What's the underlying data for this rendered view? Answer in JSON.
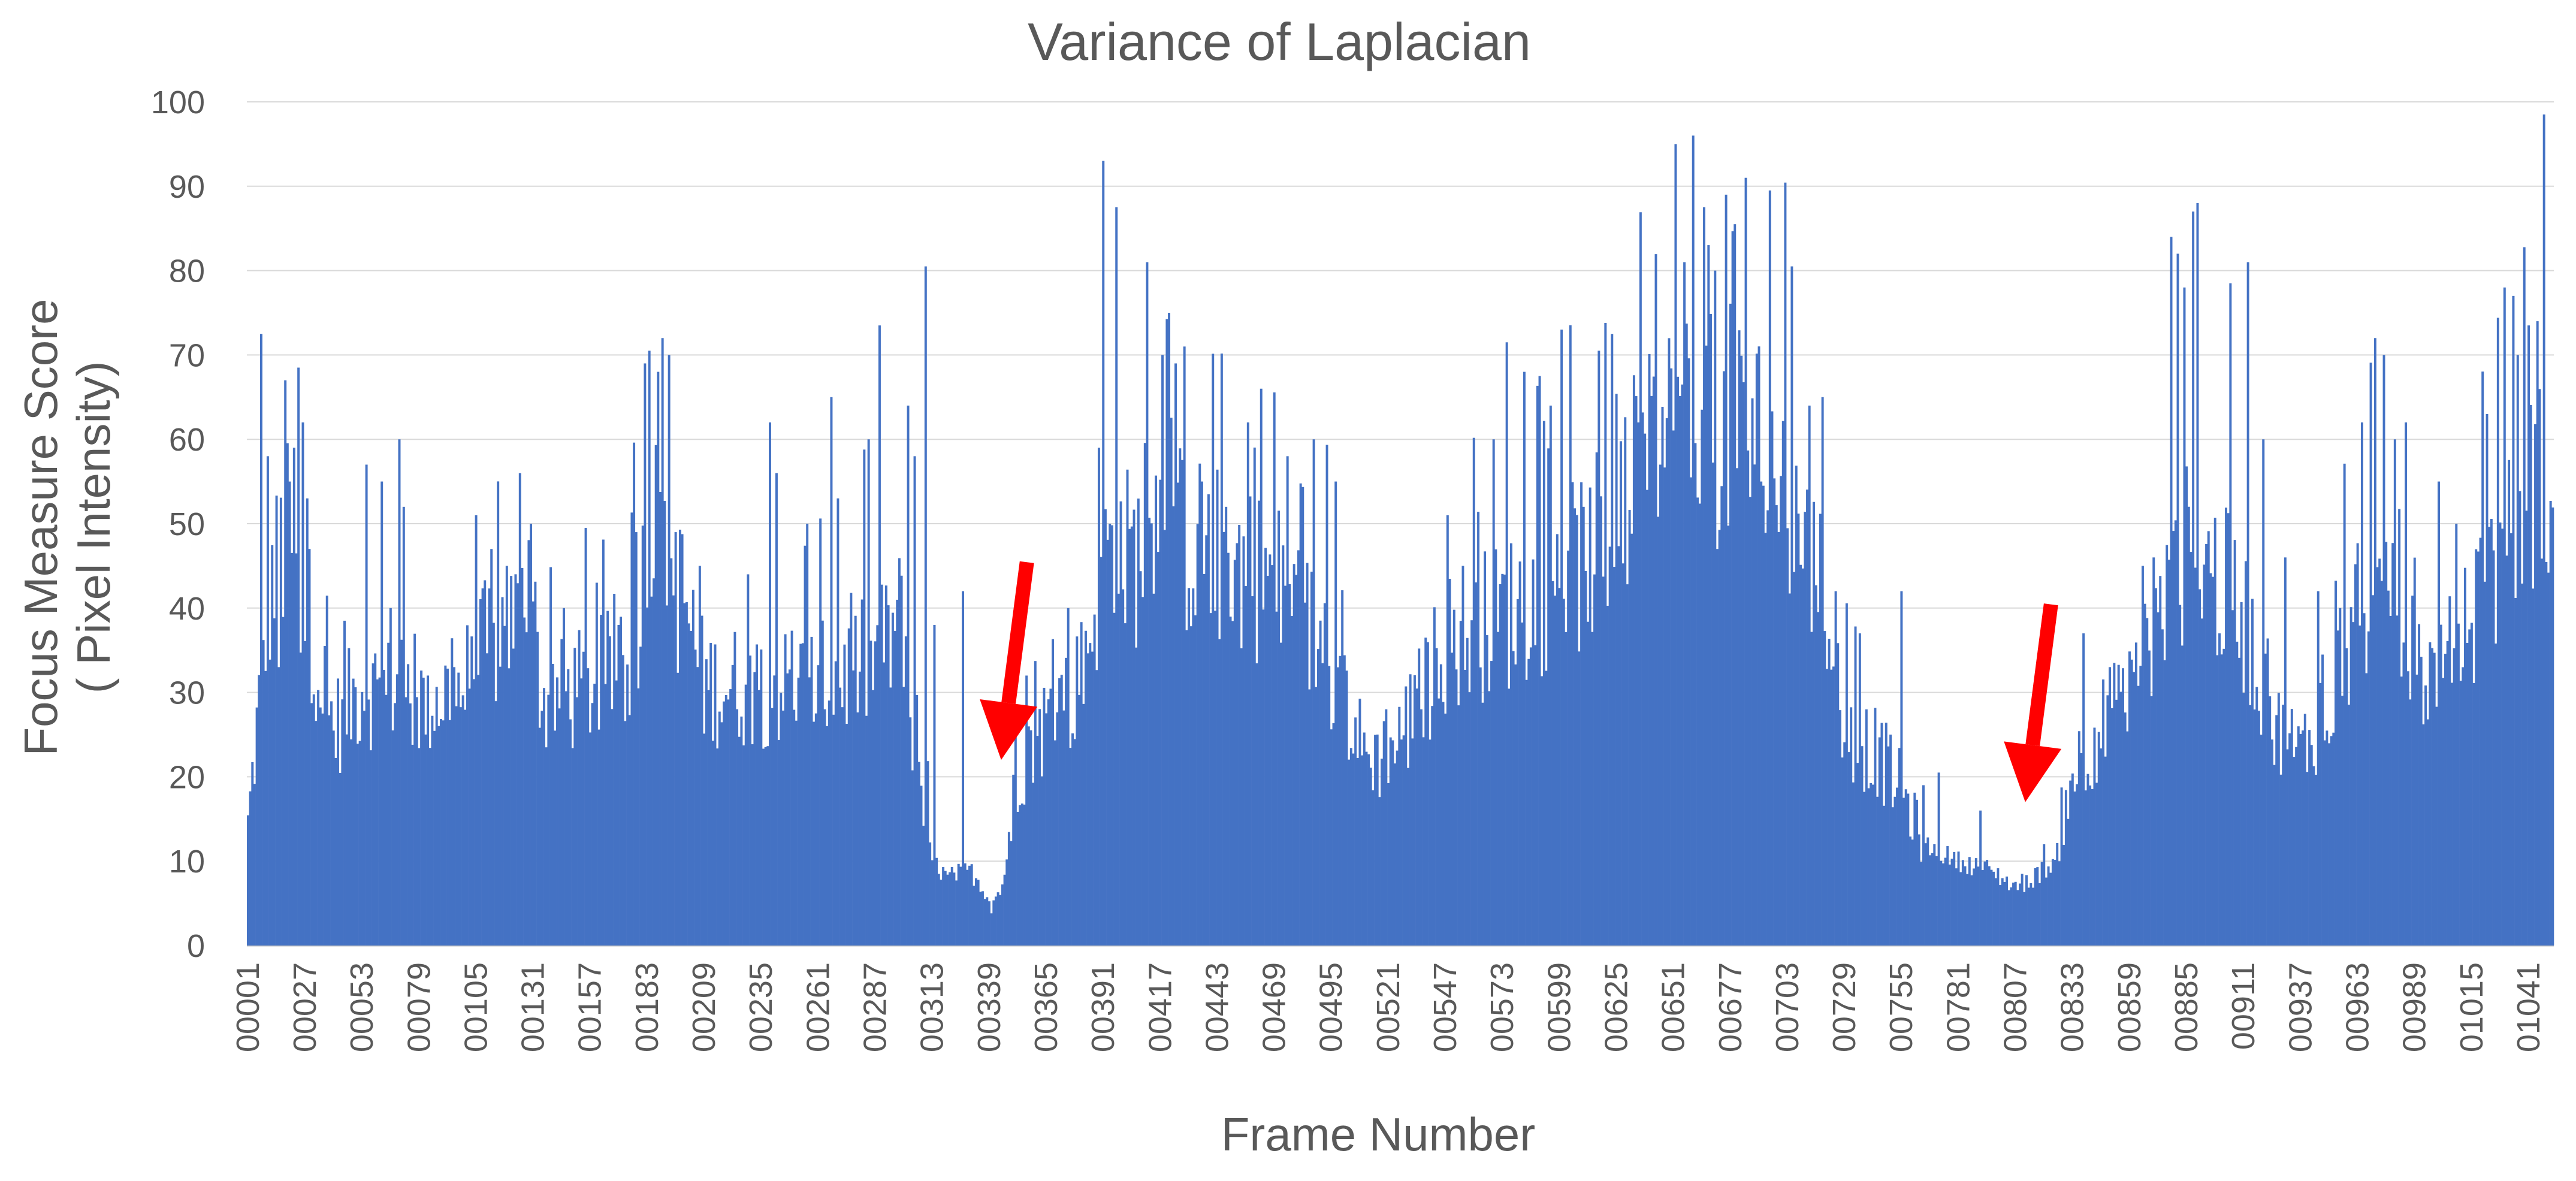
{
  "chart_data": {
    "type": "bar",
    "title": "Variance of Laplacian",
    "xlabel": "Frame Number",
    "ylabel_line1": "Focus Measure Score",
    "ylabel_line2": "( Pixel Intensity)",
    "ylim": [
      0,
      100
    ],
    "yticks": [
      0,
      10,
      20,
      30,
      40,
      50,
      60,
      70,
      80,
      90,
      100
    ],
    "grid": true,
    "legend": "none",
    "bar_color": "#4472c4",
    "annotation_color": "#ff0000",
    "frame_count": 1052,
    "frame_start": 1,
    "xtick_labels": [
      "00001",
      "00027",
      "00053",
      "00079",
      "00105",
      "00131",
      "00157",
      "00183",
      "00209",
      "00235",
      "00261",
      "00287",
      "00313",
      "00339",
      "00365",
      "00391",
      "00417",
      "00443",
      "00469",
      "00495",
      "00521",
      "00547",
      "00573",
      "00599",
      "00625",
      "00651",
      "00677",
      "00703",
      "00729",
      "00755",
      "00781",
      "00807",
      "00833",
      "00859",
      "00885",
      "00911",
      "00937",
      "00963",
      "00989",
      "01015",
      "01041"
    ],
    "annotations": [
      {
        "type": "arrow",
        "points_to_frame": 339,
        "points_to_value": 22,
        "description": "red arrow"
      },
      {
        "type": "arrow",
        "points_to_frame": 806,
        "points_to_value": 17,
        "description": "red arrow"
      }
    ],
    "envelope": [
      [
        1,
        14
      ],
      [
        5,
        25
      ],
      [
        10,
        40
      ],
      [
        20,
        48
      ],
      [
        27,
        40
      ],
      [
        40,
        25
      ],
      [
        53,
        30
      ],
      [
        79,
        28
      ],
      [
        100,
        30
      ],
      [
        105,
        33
      ],
      [
        131,
        40
      ],
      [
        135,
        28
      ],
      [
        157,
        30
      ],
      [
        175,
        33
      ],
      [
        183,
        45
      ],
      [
        200,
        40
      ],
      [
        209,
        30
      ],
      [
        235,
        30
      ],
      [
        261,
        30
      ],
      [
        287,
        33
      ],
      [
        300,
        38
      ],
      [
        305,
        20
      ],
      [
        313,
        10
      ],
      [
        320,
        8
      ],
      [
        330,
        9
      ],
      [
        336,
        7
      ],
      [
        340,
        5
      ],
      [
        345,
        7
      ],
      [
        352,
        20
      ],
      [
        365,
        26
      ],
      [
        380,
        30
      ],
      [
        391,
        45
      ],
      [
        410,
        45
      ],
      [
        417,
        48
      ],
      [
        443,
        45
      ],
      [
        469,
        42
      ],
      [
        495,
        33
      ],
      [
        510,
        22
      ],
      [
        521,
        22
      ],
      [
        535,
        28
      ],
      [
        547,
        35
      ],
      [
        573,
        38
      ],
      [
        599,
        42
      ],
      [
        625,
        48
      ],
      [
        640,
        55
      ],
      [
        651,
        60
      ],
      [
        677,
        60
      ],
      [
        690,
        58
      ],
      [
        703,
        52
      ],
      [
        720,
        40
      ],
      [
        729,
        25
      ],
      [
        745,
        22
      ],
      [
        755,
        18
      ],
      [
        765,
        12
      ],
      [
        781,
        10
      ],
      [
        795,
        9
      ],
      [
        807,
        7
      ],
      [
        815,
        8
      ],
      [
        825,
        10
      ],
      [
        833,
        20
      ],
      [
        845,
        25
      ],
      [
        859,
        28
      ],
      [
        875,
        38
      ],
      [
        885,
        45
      ],
      [
        900,
        42
      ],
      [
        911,
        38
      ],
      [
        925,
        25
      ],
      [
        937,
        22
      ],
      [
        955,
        32
      ],
      [
        963,
        40
      ],
      [
        975,
        38
      ],
      [
        989,
        33
      ],
      [
        1000,
        30
      ],
      [
        1015,
        38
      ],
      [
        1030,
        45
      ],
      [
        1041,
        55
      ],
      [
        1052,
        50
      ]
    ],
    "peaks": [
      [
        7,
        72.5
      ],
      [
        10,
        58
      ],
      [
        15,
        33
      ],
      [
        18,
        67
      ],
      [
        20,
        55
      ],
      [
        22,
        59
      ],
      [
        24,
        68.5
      ],
      [
        26,
        62
      ],
      [
        28,
        53
      ],
      [
        35,
        27.5
      ],
      [
        45,
        38.5
      ],
      [
        55,
        57
      ],
      [
        62,
        55
      ],
      [
        66,
        40
      ],
      [
        70,
        60
      ],
      [
        72,
        52
      ],
      [
        83,
        32
      ],
      [
        95,
        33
      ],
      [
        105,
        51
      ],
      [
        112,
        47
      ],
      [
        119,
        45
      ],
      [
        125,
        56
      ],
      [
        130,
        50
      ],
      [
        145,
        40
      ],
      [
        155,
        49.5
      ],
      [
        170,
        38
      ],
      [
        178,
        49
      ],
      [
        182,
        69
      ],
      [
        184,
        70.5
      ],
      [
        188,
        68
      ],
      [
        190,
        72
      ],
      [
        193,
        70
      ],
      [
        196,
        49
      ],
      [
        207,
        45
      ],
      [
        229,
        44
      ],
      [
        239,
        62
      ],
      [
        242,
        56
      ],
      [
        256,
        50
      ],
      [
        267,
        65
      ],
      [
        270,
        53
      ],
      [
        284,
        60
      ],
      [
        289,
        73.5
      ],
      [
        302,
        64
      ],
      [
        305,
        58
      ],
      [
        310,
        80.5
      ],
      [
        314,
        38
      ],
      [
        327,
        42
      ],
      [
        375,
        40
      ],
      [
        389,
        59
      ],
      [
        391,
        93
      ],
      [
        394,
        50
      ],
      [
        397,
        87.5
      ],
      [
        411,
        81
      ],
      [
        418,
        70
      ],
      [
        421,
        75
      ],
      [
        424,
        69
      ],
      [
        428,
        71
      ],
      [
        436,
        55
      ],
      [
        447,
        52
      ],
      [
        457,
        62
      ],
      [
        463,
        66
      ],
      [
        475,
        58
      ],
      [
        487,
        60
      ],
      [
        497,
        55
      ],
      [
        520,
        28
      ],
      [
        536,
        28
      ],
      [
        548,
        51
      ],
      [
        555,
        45
      ],
      [
        569,
        60
      ],
      [
        575,
        71.5
      ],
      [
        583,
        68
      ],
      [
        590,
        67.5
      ],
      [
        595,
        64
      ],
      [
        600,
        73
      ],
      [
        610,
        52
      ],
      [
        617,
        70.5
      ],
      [
        635,
        62
      ],
      [
        645,
        57
      ],
      [
        652,
        95
      ],
      [
        656,
        81
      ],
      [
        660,
        96
      ],
      [
        665,
        87.5
      ],
      [
        670,
        80
      ],
      [
        675,
        89
      ],
      [
        679,
        85.5
      ],
      [
        684,
        91
      ],
      [
        691,
        55
      ],
      [
        695,
        89.5
      ],
      [
        705,
        80.5
      ],
      [
        713,
        64
      ],
      [
        719,
        65
      ],
      [
        725,
        42
      ],
      [
        736,
        37
      ],
      [
        755,
        42
      ],
      [
        772,
        20.5
      ],
      [
        791,
        16
      ],
      [
        820,
        12
      ],
      [
        838,
        37
      ],
      [
        850,
        33
      ],
      [
        865,
        45
      ],
      [
        870,
        46
      ],
      [
        878,
        84
      ],
      [
        881,
        82
      ],
      [
        884,
        78
      ],
      [
        888,
        87
      ],
      [
        890,
        88
      ],
      [
        900,
        37
      ],
      [
        905,
        78.5
      ],
      [
        913,
        81
      ],
      [
        920,
        60
      ],
      [
        930,
        46
      ],
      [
        945,
        42
      ],
      [
        955,
        40
      ],
      [
        965,
        62
      ],
      [
        971,
        72
      ],
      [
        975,
        70
      ],
      [
        980,
        60
      ],
      [
        985,
        62
      ],
      [
        1000,
        55
      ],
      [
        1008,
        50
      ],
      [
        1022,
        63
      ],
      [
        1030,
        78
      ],
      [
        1034,
        77
      ],
      [
        1036,
        70
      ],
      [
        1041,
        73.5
      ],
      [
        1045,
        74
      ],
      [
        1048,
        98.5
      ]
    ]
  }
}
